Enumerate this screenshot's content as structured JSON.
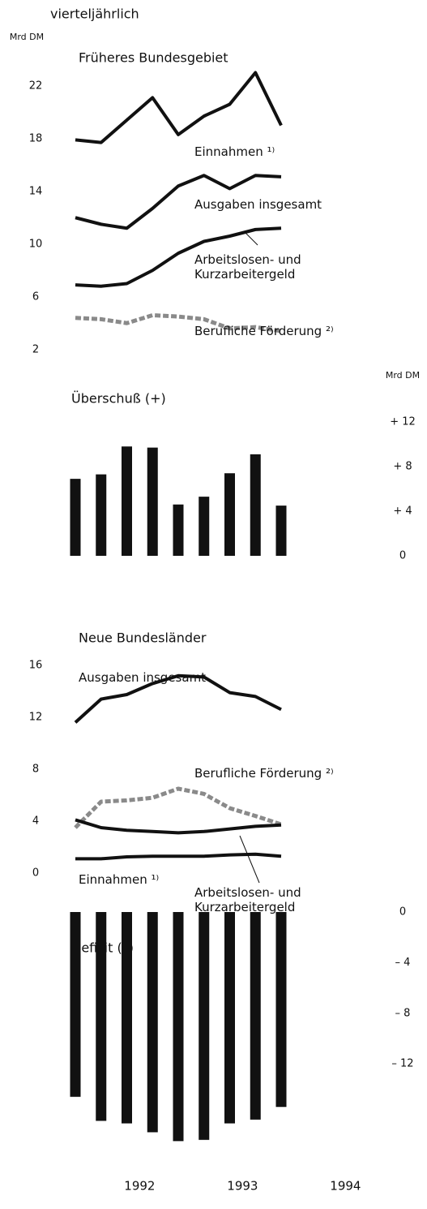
{
  "subtitle": "vierteljährlich",
  "x_axis": {
    "labels": [
      "1992",
      "1993",
      "1994"
    ]
  },
  "chart_data": [
    {
      "type": "line",
      "title": "Früheres Bundesgebiet",
      "y_label": "Mrd DM",
      "categories": [
        null,
        null,
        null,
        null,
        null,
        null,
        null,
        null,
        null
      ],
      "ylim": [
        1,
        24
      ],
      "yticks": [
        2,
        6,
        10,
        14,
        18,
        22
      ],
      "series": [
        {
          "name": "Einnahmen ¹⁾",
          "color": "#111111",
          "values": [
            17.9,
            17.7,
            19.4,
            21.1,
            18.3,
            19.7,
            20.6,
            23.0,
            19.0
          ]
        },
        {
          "name": "Ausgaben insgesamt",
          "color": "#111111",
          "values": [
            12.0,
            11.5,
            11.2,
            12.7,
            14.4,
            15.2,
            14.2,
            15.2,
            15.1
          ]
        },
        {
          "name": "Arbeitslosen- und\nKurzarbeitergeld",
          "color": "#111111",
          "values": [
            6.9,
            6.8,
            7.0,
            8.0,
            9.3,
            10.2,
            10.6,
            11.1,
            11.2
          ]
        },
        {
          "name": "Berufliche Förderung ²⁾",
          "color": "#8a8a8a",
          "dashed": true,
          "values": [
            4.4,
            4.3,
            4.0,
            4.6,
            4.5,
            4.3,
            3.6,
            3.7,
            3.4
          ]
        }
      ]
    },
    {
      "type": "bar",
      "title": "Überschuß (+)",
      "y_label": "Mrd DM",
      "color": "#111111",
      "categories": [
        null,
        null,
        null,
        null,
        null,
        null,
        null,
        null,
        null
      ],
      "values": [
        6.9,
        7.3,
        9.8,
        9.7,
        4.6,
        5.3,
        7.4,
        9.1,
        4.5
      ],
      "ylim": [
        0,
        12
      ],
      "yticks": [
        0,
        {
          "value": 4,
          "label": "+ 4"
        },
        {
          "value": 8,
          "label": "+ 8"
        },
        {
          "value": 12,
          "label": "+ 12"
        }
      ]
    },
    {
      "type": "line",
      "title": "Neue Bundesländer",
      "categories": [
        null,
        null,
        null,
        null,
        null,
        null,
        null,
        null,
        null
      ],
      "ylim": [
        0,
        16
      ],
      "yticks": [
        0,
        4,
        8,
        12,
        16
      ],
      "series": [
        {
          "name": "Ausgaben insgesamt",
          "color": "#111111",
          "values": [
            11.6,
            13.4,
            13.75,
            14.6,
            15.2,
            15.1,
            13.9,
            13.6,
            12.6
          ]
        },
        {
          "name": "Berufliche Förderung ²⁾",
          "color": "#8a8a8a",
          "dashed": true,
          "values": [
            3.5,
            5.5,
            5.6,
            5.8,
            6.5,
            6.1,
            5.0,
            4.4,
            3.75
          ]
        },
        {
          "name": "Arbeitslosen- und\nKurzarbeitergeld",
          "color": "#111111",
          "values": [
            4.1,
            3.5,
            3.3,
            3.2,
            3.1,
            3.2,
            3.4,
            3.6,
            3.7
          ]
        },
        {
          "name": "Einnahmen ¹⁾",
          "color": "#111111",
          "values": [
            1.1,
            1.1,
            1.25,
            1.3,
            1.3,
            1.3,
            1.4,
            1.45,
            1.3
          ]
        }
      ]
    },
    {
      "type": "bar",
      "title": "Defizit (–)",
      "color": "#111111",
      "categories": [
        null,
        null,
        null,
        null,
        null,
        null,
        null,
        null,
        null
      ],
      "values": [
        -14.6,
        -16.5,
        -16.7,
        -17.4,
        -18.1,
        -18.0,
        -16.7,
        -16.4,
        -15.4
      ],
      "ylim": [
        -19,
        0
      ],
      "yticks": [
        0,
        {
          "value": -4,
          "label": "– 4"
        },
        {
          "value": -8,
          "label": "– 8"
        },
        {
          "value": -12,
          "label": "– 12"
        }
      ]
    }
  ]
}
